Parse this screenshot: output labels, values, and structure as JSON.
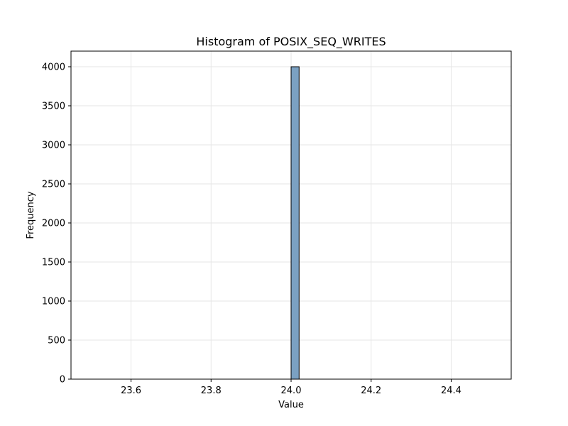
{
  "chart_data": {
    "type": "bar",
    "title": "Histogram of POSIX_SEQ_WRITES",
    "xlabel": "Value",
    "ylabel": "Frequency",
    "xlim": [
      23.45,
      24.55
    ],
    "ylim": [
      0,
      4200
    ],
    "xticks": [
      23.6,
      23.8,
      24.0,
      24.2,
      24.4
    ],
    "xtick_labels": [
      "23.6",
      "23.8",
      "24.0",
      "24.2",
      "24.4"
    ],
    "yticks": [
      0,
      500,
      1000,
      1500,
      2000,
      2500,
      3000,
      3500,
      4000
    ],
    "ytick_labels": [
      "0",
      "500",
      "1000",
      "1500",
      "2000",
      "2500",
      "3000",
      "3500",
      "4000"
    ],
    "bins": [
      {
        "x0": 24.0,
        "x1": 24.02,
        "count": 4000
      }
    ],
    "grid": true,
    "bar_color": "#7ba1c2",
    "bar_edge_color": "#000000"
  }
}
